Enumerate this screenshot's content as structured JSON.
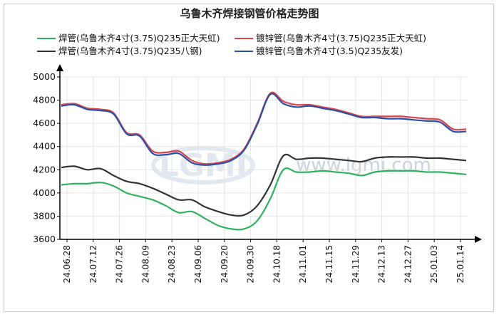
{
  "chart_data": {
    "type": "line",
    "title": "乌鲁木齐焊接钢管价格走势图",
    "watermark": "www.lgmi.com",
    "xlabel": "",
    "ylabel": "",
    "ylim": [
      3600,
      5000
    ],
    "yticks": [
      "5000",
      "4800",
      "4600",
      "4400",
      "4200",
      "4000",
      "3800",
      "3600"
    ],
    "x_ticks": [
      "24.06.28",
      "24.07.12",
      "24.07.26",
      "24.08.09",
      "24.08.23",
      "24.09.06",
      "24.09.20",
      "24.09.30",
      "24.10.18",
      "24.11.01",
      "24.11.15",
      "24.11.29",
      "24.12.13",
      "24.12.27",
      "25.01.03",
      "25.01.14"
    ],
    "legend_position": "top",
    "grid": true,
    "series": [
      {
        "name": "焊管(乌鲁木齐4寸(3.75)Q235正大天虹)",
        "color": "#2db35d",
        "values": [
          4070,
          4080,
          4080,
          4090,
          4060,
          4000,
          3970,
          3940,
          3890,
          3830,
          3840,
          3780,
          3720,
          3690,
          3690,
          3760,
          3950,
          4200,
          4180,
          4180,
          4190,
          4180,
          4170,
          4150,
          4180,
          4190,
          4190,
          4190,
          4180,
          4180,
          4170,
          4160
        ]
      },
      {
        "name": "焊管(乌鲁木齐4寸(3.75)Q235八钢)",
        "color": "#333333",
        "values": [
          4220,
          4230,
          4200,
          4210,
          4150,
          4100,
          4080,
          4040,
          3990,
          3940,
          3940,
          3880,
          3840,
          3810,
          3810,
          3890,
          4070,
          4320,
          4290,
          4300,
          4300,
          4290,
          4280,
          4270,
          4300,
          4310,
          4310,
          4310,
          4300,
          4300,
          4290,
          4280
        ]
      },
      {
        "name": "镀锌管(乌鲁木齐4寸(3.75)Q235正大天虹)",
        "color": "#d9454d",
        "values": [
          4760,
          4770,
          4730,
          4720,
          4690,
          4520,
          4500,
          4360,
          4350,
          4360,
          4280,
          4250,
          4260,
          4290,
          4380,
          4600,
          4860,
          4790,
          4760,
          4760,
          4740,
          4720,
          4690,
          4660,
          4660,
          4660,
          4660,
          4650,
          4640,
          4630,
          4550,
          4550
        ]
      },
      {
        "name": "镀锌管(乌鲁木齐4寸(3.5)Q235友发)",
        "color": "#2850a8",
        "values": [
          4750,
          4760,
          4720,
          4710,
          4680,
          4510,
          4490,
          4340,
          4330,
          4340,
          4260,
          4240,
          4250,
          4280,
          4370,
          4590,
          4850,
          4770,
          4740,
          4750,
          4730,
          4710,
          4680,
          4650,
          4650,
          4640,
          4640,
          4630,
          4620,
          4610,
          4530,
          4530
        ]
      }
    ]
  }
}
